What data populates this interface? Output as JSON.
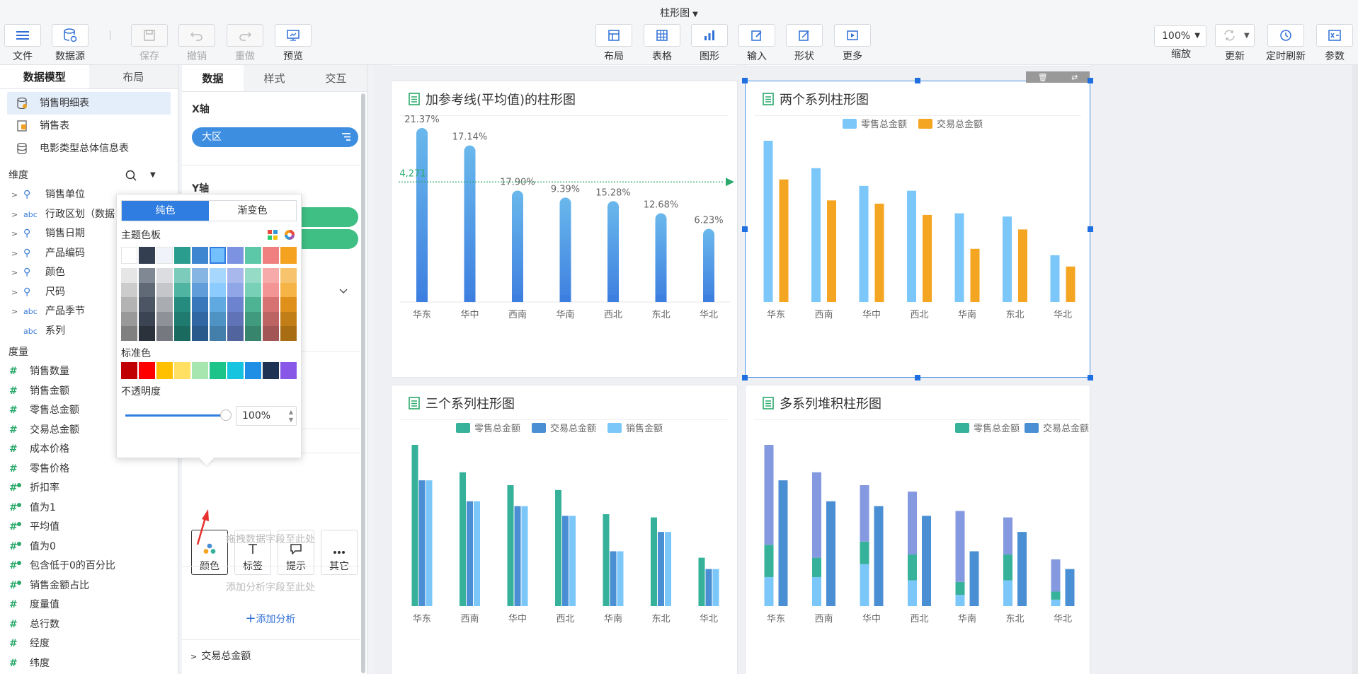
{
  "title": "柱形图",
  "toolbar": {
    "left": [
      {
        "label": "文件",
        "icon": "menu-icon"
      },
      {
        "label": "数据源",
        "icon": "database-icon"
      },
      {
        "label": "保存",
        "icon": "save-icon",
        "disabled": true
      },
      {
        "label": "撤销",
        "icon": "undo-icon",
        "disabled": true
      },
      {
        "label": "重做",
        "icon": "redo-icon",
        "disabled": true
      },
      {
        "label": "预览",
        "icon": "preview-icon"
      }
    ],
    "center": [
      {
        "label": "布局",
        "icon": "layout-icon"
      },
      {
        "label": "表格",
        "icon": "table-icon"
      },
      {
        "label": "图形",
        "icon": "bar-chart-icon"
      },
      {
        "label": "输入",
        "icon": "edit-icon"
      },
      {
        "label": "形状",
        "icon": "shape-icon"
      },
      {
        "label": "更多",
        "icon": "more-icon"
      }
    ],
    "zoom": {
      "value": "100%",
      "label": "缩放"
    },
    "right": [
      {
        "label": "更新",
        "icon": "refresh-icon"
      },
      {
        "label": "定时刷新",
        "icon": "clock-icon"
      },
      {
        "label": "参数",
        "icon": "param-icon"
      }
    ]
  },
  "left_panel": {
    "tabs": [
      "数据模型",
      "布局"
    ],
    "datasets": [
      "销售明细表",
      "销售表",
      "电影类型总体信息表"
    ],
    "dimension_title": "维度",
    "dimensions": [
      {
        "name": "销售单位",
        "type": "pin"
      },
      {
        "name": "行政区划（数据",
        "type": "abc"
      },
      {
        "name": "销售日期",
        "type": "pin"
      },
      {
        "name": "产品编码",
        "type": "pin"
      },
      {
        "name": "颜色",
        "type": "pin"
      },
      {
        "name": "尺码",
        "type": "pin"
      },
      {
        "name": "产品季节",
        "type": "abc"
      },
      {
        "name": "系列",
        "type": "abc"
      }
    ],
    "measure_title": "度量",
    "measures": [
      {
        "name": "销售数量",
        "calc": false
      },
      {
        "name": "销售金额",
        "calc": false
      },
      {
        "name": "零售总金额",
        "calc": false
      },
      {
        "name": "交易总金额",
        "calc": false
      },
      {
        "name": "成本价格",
        "calc": false
      },
      {
        "name": "零售价格",
        "calc": false
      },
      {
        "name": "折扣率",
        "calc": true
      },
      {
        "name": "值为1",
        "calc": true
      },
      {
        "name": "平均值",
        "calc": true
      },
      {
        "name": "值为0",
        "calc": true
      },
      {
        "name": "包含低于0的百分比",
        "calc": true
      },
      {
        "name": "销售金额占比",
        "calc": true
      },
      {
        "name": "度量值",
        "calc": false
      },
      {
        "name": "总行数",
        "calc": false
      },
      {
        "name": "经度",
        "calc": false
      },
      {
        "name": "纬度",
        "calc": false
      }
    ]
  },
  "mid_panel": {
    "tabs": [
      "数据",
      "样式",
      "交互"
    ],
    "x_axis_label": "X轴",
    "x_field": "大区",
    "y_axis_label": "Y轴",
    "drop_hint": "拖拽数据字段至此处",
    "drop_hint_short": "至此处",
    "props": [
      "颜色",
      "标签",
      "提示",
      "其它"
    ],
    "analysis_hint": "添加分析字段至此处",
    "add_analysis": "添加分析",
    "bottom_field": "交易总金额"
  },
  "color_picker": {
    "modes": [
      "纯色",
      "渐变色"
    ],
    "theme_label": "主题色板",
    "standard_label": "标准色",
    "opacity_label": "不透明度",
    "opacity_value": "100%",
    "theme_top": [
      "#ffffff",
      "#333f50",
      "#f0f4fa",
      "#2a9d8f",
      "#3f86d0",
      "#74c0fc",
      "#7b93e0",
      "#5cc8a8",
      "#f08080",
      "#f4a21f"
    ],
    "theme_shades": [
      [
        "#e6e6e6",
        "#808893",
        "#dcdde0",
        "#7ccbbb",
        "#86b4e3",
        "#a8d7fd",
        "#a9b8ec",
        "#96dbc6",
        "#f6aaaa",
        "#f7c36c"
      ],
      [
        "#cccccc",
        "#606976",
        "#c4c6ca",
        "#50b4a3",
        "#609dd9",
        "#8ccbfd",
        "#91a6e6",
        "#78d0b6",
        "#f39595",
        "#f5b445"
      ],
      [
        "#b3b3b3",
        "#4b5563",
        "#a9acb1",
        "#248b7e",
        "#3877ba",
        "#5fa9e0",
        "#6c83cf",
        "#4db392",
        "#d77272",
        "#de901a"
      ],
      [
        "#999999",
        "#3b4452",
        "#8e9298",
        "#1f7a6f",
        "#3168a3",
        "#4f92c4",
        "#5f73b6",
        "#409a7e",
        "#bc6464",
        "#c27e16"
      ],
      [
        "#808080",
        "#2b323c",
        "#75797f",
        "#1a6a60",
        "#2a5a8c",
        "#447fab",
        "#52649e",
        "#36856c",
        "#a35656",
        "#a86d13"
      ]
    ],
    "standard": [
      "#c00000",
      "#ff0000",
      "#ffc000",
      "#ffe063",
      "#a8e6b0",
      "#1cc48a",
      "#16c4e0",
      "#1f8fe5",
      "#1e3354",
      "#8957e8"
    ]
  },
  "charts": [
    {
      "title": "加参考线(平均值)的柱形图",
      "chart_data": {
        "type": "bar",
        "categories": [
          "华东",
          "华中",
          "西南",
          "华南",
          "西北",
          "东北",
          "华北"
        ],
        "values": [
          21.37,
          17.14,
          17.9,
          9.39,
          15.28,
          12.68,
          6.23
        ],
        "labels": [
          "21.37%",
          "17.14%",
          "17.90%",
          "9.39%",
          "15.28%",
          "12.68%",
          "6.23%"
        ],
        "bar_heights_rel": [
          1.0,
          0.9,
          0.64,
          0.6,
          0.58,
          0.51,
          0.42
        ],
        "reference_line": {
          "label": "4,271",
          "rel": 0.69
        },
        "bar_gradient": [
          "#6ab8ec",
          "#3d7fe0"
        ]
      }
    },
    {
      "title": "两个系列柱形图",
      "chart_data": {
        "type": "bar",
        "categories": [
          "华东",
          "西南",
          "华中",
          "西北",
          "华南",
          "东北",
          "华北"
        ],
        "series": [
          {
            "name": "零售总金额",
            "color": "#7cc7fa",
            "values": [
              1.0,
              0.83,
              0.72,
              0.69,
              0.55,
              0.53,
              0.29
            ]
          },
          {
            "name": "交易总金额",
            "color": "#f4a623",
            "values": [
              0.76,
              0.63,
              0.61,
              0.54,
              0.33,
              0.45,
              0.22
            ]
          }
        ]
      }
    },
    {
      "title": "三个系列柱形图",
      "chart_data": {
        "type": "bar",
        "categories": [
          "华东",
          "西南",
          "华中",
          "西北",
          "华南",
          "东北",
          "华北"
        ],
        "series": [
          {
            "name": "零售总金额",
            "color": "#36b29a",
            "values": [
              1.0,
              0.83,
              0.75,
              0.72,
              0.57,
              0.55,
              0.3
            ]
          },
          {
            "name": "交易总金额",
            "color": "#4a8fd4",
            "values": [
              0.78,
              0.65,
              0.62,
              0.56,
              0.34,
              0.46,
              0.23
            ]
          },
          {
            "name": "销售金额",
            "color": "#7cc7fa",
            "values": [
              0.78,
              0.65,
              0.62,
              0.56,
              0.34,
              0.46,
              0.23
            ]
          }
        ]
      }
    },
    {
      "title": "多系列堆积柱形图",
      "chart_data": {
        "type": "bar",
        "stacked": true,
        "categories": [
          "华东",
          "西南",
          "华中",
          "西北",
          "华南",
          "东北",
          "华北"
        ],
        "legend": [
          "零售总金额",
          "交易总金额"
        ],
        "stacks": [
          [
            [
              0.18,
              "#7cc7fa"
            ],
            [
              0.2,
              "#36b29a"
            ],
            [
              0.62,
              "#8599e0"
            ]
          ],
          [
            [
              0.18,
              "#7cc7fa"
            ],
            [
              0.12,
              "#36b29a"
            ],
            [
              0.53,
              "#8599e0"
            ]
          ],
          [
            [
              0.26,
              "#7cc7fa"
            ],
            [
              0.14,
              "#36b29a"
            ],
            [
              0.35,
              "#8599e0"
            ]
          ],
          [
            [
              0.16,
              "#7cc7fa"
            ],
            [
              0.16,
              "#36b29a"
            ],
            [
              0.39,
              "#8599e0"
            ]
          ],
          [
            [
              0.07,
              "#7cc7fa"
            ],
            [
              0.08,
              "#36b29a"
            ],
            [
              0.44,
              "#8599e0"
            ]
          ],
          [
            [
              0.16,
              "#7cc7fa"
            ],
            [
              0.16,
              "#36b29a"
            ],
            [
              0.23,
              "#8599e0"
            ]
          ],
          [
            [
              0.04,
              "#7cc7fa"
            ],
            [
              0.05,
              "#36b29a"
            ],
            [
              0.2,
              "#8599e0"
            ]
          ]
        ],
        "second_bars": [
          {
            "value": 0.78,
            "color": "#4a8fd4"
          },
          {
            "value": 0.65,
            "color": "#4a8fd4"
          },
          {
            "value": 0.62,
            "color": "#4a8fd4"
          },
          {
            "value": 0.56,
            "color": "#4a8fd4"
          },
          {
            "value": 0.34,
            "color": "#4a8fd4"
          },
          {
            "value": 0.46,
            "color": "#4a8fd4"
          },
          {
            "value": 0.23,
            "color": "#4a8fd4"
          }
        ],
        "legend_colors": [
          "#36b29a",
          "#4a8fd4"
        ]
      }
    }
  ]
}
